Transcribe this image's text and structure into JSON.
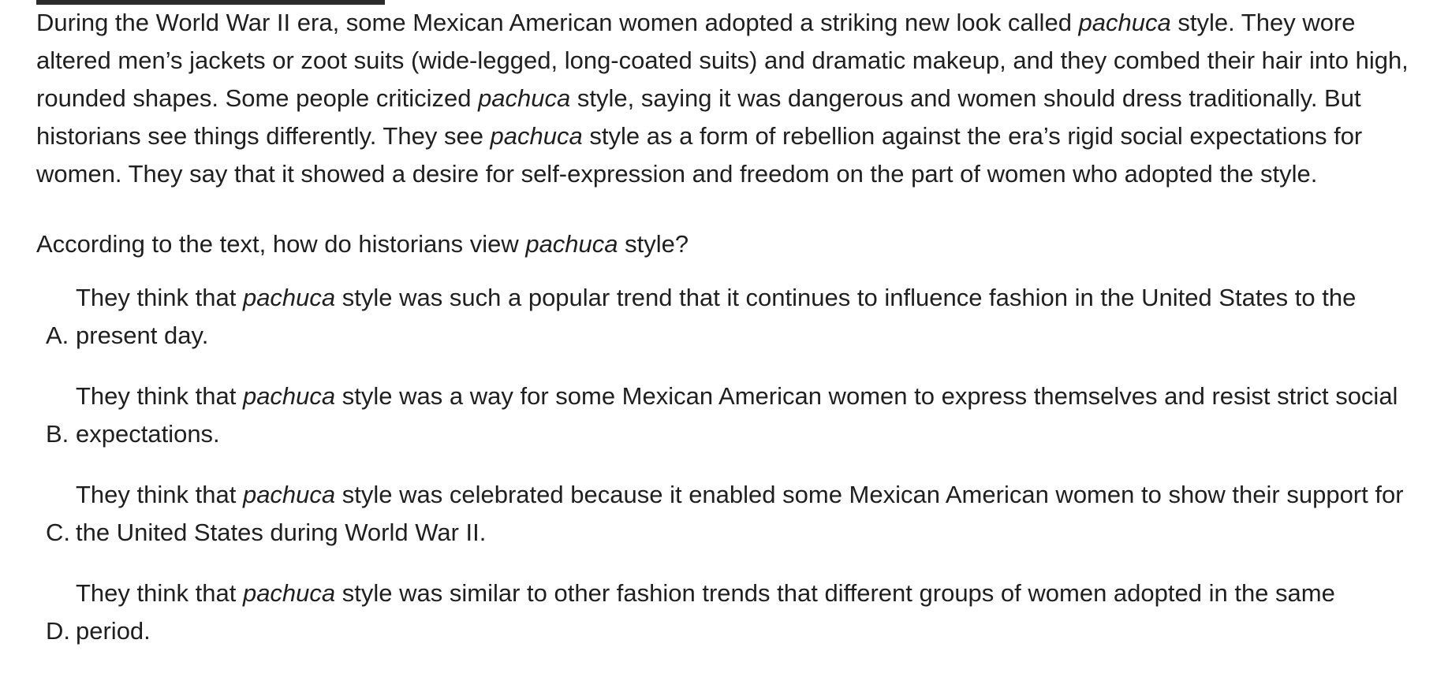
{
  "passage": {
    "s1_before": "During the World War II era, some Mexican American women adopted a striking new look called ",
    "s1_term": "pachuca",
    "s1_after": " style. They wore altered men’s jackets or zoot suits (wide-legged, long-coated suits) and dramatic makeup, and they combed their hair into high, rounded shapes. Some people criticized ",
    "s2_term": "pachuca",
    "s2_after": " style, saying it was dangerous and women should dress traditionally. But historians see things differently. They see ",
    "s3_term": "pachuca",
    "s3_after": " style as a form of rebellion against the era’s rigid social expectations for women. They say that it showed a desire for self-expression and freedom on the part of women who adopted the style."
  },
  "question": {
    "before": "According to the text, how do historians view ",
    "term": "pachuca",
    "after": " style?"
  },
  "choices": [
    {
      "letter": "A.",
      "before": "They think that ",
      "term": "pachuca",
      "after": " style was such a popular trend that it continues to influence fashion in the United States to the present day."
    },
    {
      "letter": "B.",
      "before": "They think that ",
      "term": "pachuca",
      "after": " style was a way for some Mexican American women to express themselves and resist strict social expectations."
    },
    {
      "letter": "C.",
      "before": "They think that ",
      "term": "pachuca",
      "after": " style was celebrated because it enabled some Mexican American women to show their support for the United States during World War II."
    },
    {
      "letter": "D.",
      "before": "They think that ",
      "term": "pachuca",
      "after": " style was similar to other fashion trends that different groups of women adopted in the same period."
    }
  ]
}
